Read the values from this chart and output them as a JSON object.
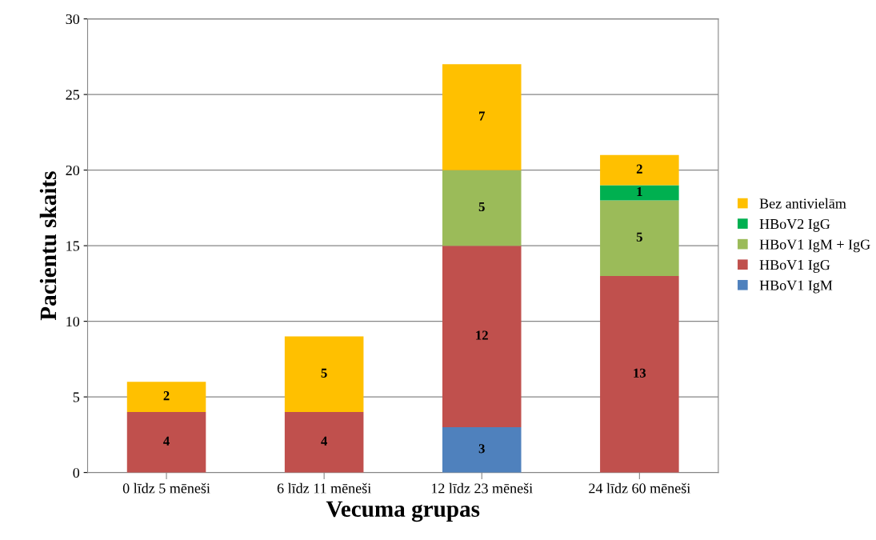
{
  "chart_data": {
    "type": "bar",
    "stacked": true,
    "xlabel": "Vecuma grupas",
    "ylabel": "Pacientu skaits",
    "categories": [
      "0 līdz 5 mēneši",
      "6 līdz 11 mēneši",
      "12 līdz 23 mēneši",
      "24 līdz 60 mēneši"
    ],
    "series": [
      {
        "name": "HBoV1 IgM",
        "color": "#4f81bd",
        "values": [
          null,
          null,
          3,
          null
        ]
      },
      {
        "name": "HBoV1 IgG",
        "color": "#c0504d",
        "values": [
          4,
          4,
          12,
          13
        ]
      },
      {
        "name": "HBoV1 IgM + IgG",
        "color": "#9bbb59",
        "values": [
          null,
          null,
          5,
          5
        ]
      },
      {
        "name": "HBoV2 IgG",
        "color": "#00b050",
        "values": [
          null,
          null,
          null,
          1
        ]
      },
      {
        "name": "Bez antivielām",
        "color": "#ffc000",
        "values": [
          2,
          5,
          7,
          2
        ]
      }
    ],
    "ylim": [
      0,
      30
    ],
    "yticks": [
      0,
      5,
      10,
      15,
      20,
      25,
      30
    ],
    "grid": "y",
    "legend": "right",
    "data_labels": true
  }
}
